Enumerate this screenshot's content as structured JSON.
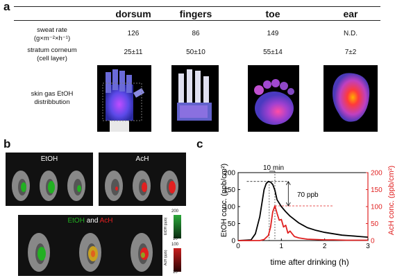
{
  "panels": {
    "a": "a",
    "b": "b",
    "c": "c"
  },
  "table": {
    "columns": [
      "dorsum",
      "fingers",
      "toe",
      "ear"
    ],
    "rows": [
      {
        "label_line1": "sweat rate",
        "label_line2": "(g×m⁻²×h⁻¹)",
        "values": [
          "126",
          "86",
          "149",
          "N.D."
        ]
      },
      {
        "label_line1": "stratum corneum",
        "label_line2": "(cell layer)",
        "values": [
          "25±11",
          "50±10",
          "55±14",
          "7±2"
        ]
      }
    ],
    "image_row_label_line1": "skin gas EtOH",
    "image_row_label_line2": "distribbution"
  },
  "panel_b": {
    "etoh_title": "EtOH",
    "ach_title": "AcH",
    "combined_title_etoh": "EtOH",
    "combined_title_and": " and ",
    "combined_title_ach": "AcH",
    "scale_etoh": {
      "label": "EtOH (ppb)",
      "max": "200",
      "min": "10"
    },
    "scale_ach": {
      "label": "AcH (ppb)",
      "max": "100",
      "min": "10"
    },
    "colors": {
      "etoh": "#22b022",
      "ach": "#e02020"
    }
  },
  "chart_data": {
    "type": "line",
    "title": "",
    "xlabel": "time after drinking (h)",
    "ylabel_left": "EtOH conc. (ppb/cm²)",
    "ylabel_right": "AcH conc. (ppb/cm²)",
    "xlim": [
      0,
      3
    ],
    "ylim_left": [
      0,
      200
    ],
    "ylim_right": [
      0,
      200
    ],
    "xticks": [
      "0",
      "1",
      "2",
      "3"
    ],
    "yticks_left": [
      "0",
      "50",
      "100",
      "150",
      "200"
    ],
    "yticks_right": [
      "0",
      "50",
      "100",
      "150",
      "200"
    ],
    "annotations": {
      "time_gap": "10 min",
      "conc_gap": "70 ppb"
    },
    "series": [
      {
        "name": "EtOH",
        "axis": "left",
        "color": "#000000",
        "x": [
          0,
          0.3,
          0.4,
          0.5,
          0.55,
          0.6,
          0.65,
          0.7,
          0.75,
          0.8,
          0.85,
          0.9,
          1.0,
          1.1,
          1.2,
          1.3,
          1.4,
          1.5,
          1.6,
          1.8,
          2.0,
          2.2,
          2.4,
          2.6,
          2.8,
          3.0
        ],
        "y": [
          0,
          2,
          20,
          70,
          110,
          150,
          168,
          174,
          172,
          165,
          148,
          120,
          100,
          85,
          72,
          62,
          52,
          45,
          38,
          30,
          24,
          20,
          16,
          14,
          12,
          10
        ]
      },
      {
        "name": "AcH",
        "axis": "right",
        "color": "#e02020",
        "x": [
          0,
          0.5,
          0.6,
          0.7,
          0.75,
          0.8,
          0.85,
          0.9,
          0.95,
          1.0,
          1.05,
          1.1,
          1.15,
          1.2,
          1.3,
          1.4,
          1.5,
          1.6,
          1.8,
          2.0,
          2.2,
          2.5,
          2.8,
          3.0
        ],
        "y": [
          0,
          0,
          3,
          15,
          40,
          85,
          102,
          80,
          60,
          62,
          40,
          45,
          22,
          28,
          12,
          8,
          6,
          4,
          3,
          2,
          2,
          1,
          1,
          1
        ]
      }
    ]
  }
}
